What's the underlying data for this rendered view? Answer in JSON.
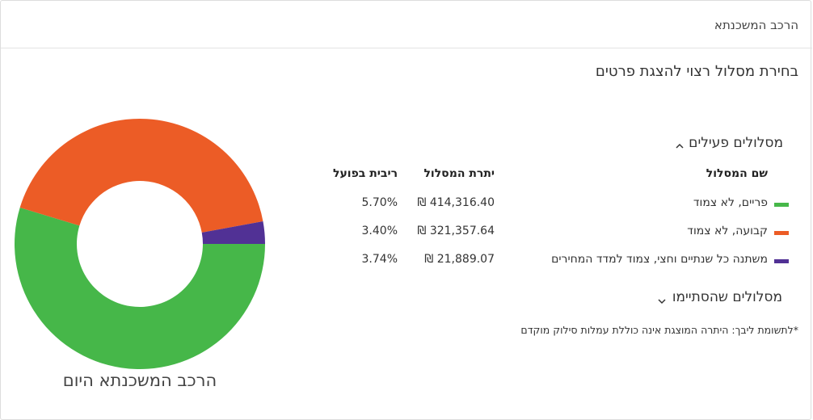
{
  "header": {
    "title": "הרכב המשכנתא"
  },
  "section_title": "בחירת מסלול רצוי להצגת פרטים",
  "chart_data": {
    "type": "donut",
    "title": "הרכב המשכנתא היום",
    "categories": [
      "פריים, לא צמוד",
      "קבועה, לא צמוד",
      "משתנה כל שנתיים וחצי, צמוד למדד המחירים"
    ],
    "values": [
      414316.4,
      321357.64,
      21889.07
    ],
    "value_labels": [
      "414,316.40 ₪",
      "321,357.64 ₪",
      "21,889.07 ₪"
    ],
    "colors": [
      "#46b749",
      "#ec5c26",
      "#513195"
    ]
  },
  "active_tracks": {
    "title": "מסלולים פעילים",
    "columns": [
      "שם המסלול",
      "יתרת המסלול",
      "ריבית בפועל"
    ],
    "rates": [
      "5.70%",
      "3.40%",
      "3.74%"
    ]
  },
  "ended_tracks": {
    "title": "מסלולים שהסתיימו"
  },
  "footnote": "*לתשומת ליבך: היתרה המוצגת אינה כוללת עמלות סילוק מוקדם"
}
